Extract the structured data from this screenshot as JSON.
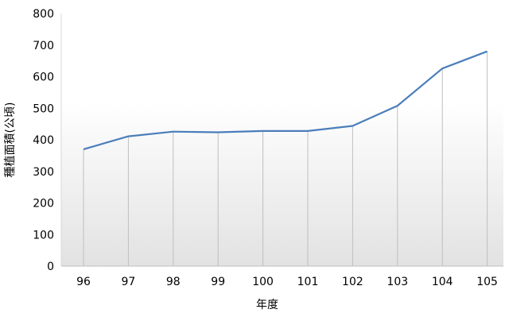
{
  "chart_data": {
    "type": "line",
    "categories": [
      "96",
      "97",
      "98",
      "99",
      "100",
      "101",
      "102",
      "103",
      "104",
      "105"
    ],
    "series": [
      {
        "values": [
          370,
          411,
          426,
          424,
          428,
          428,
          444,
          508,
          626,
          680
        ]
      }
    ],
    "xlabel": "年度",
    "ylabel": "種植面積(公頃)",
    "ylim": [
      0,
      800
    ],
    "yticks": [
      0,
      100,
      200,
      300,
      400,
      500,
      600,
      700,
      800
    ],
    "line_color": "#4a7ebb",
    "gradient_top": "#ffffff",
    "gradient_bottom": "#e2e2e2",
    "vgrid_color": "#bfbfbf",
    "grid": "vertical drop lines"
  }
}
